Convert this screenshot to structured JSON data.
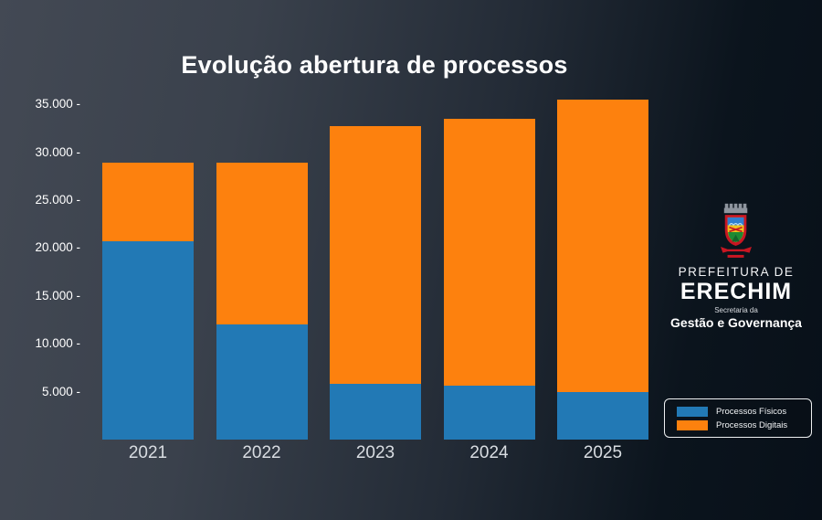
{
  "title": "Evolução abertura de processos",
  "colors": {
    "fisicos": "#2279b5",
    "digitais": "#fd810e",
    "background_left": "#434954",
    "background_right": "#081019",
    "ytick_text": "#ffffff",
    "xtick_text": "#d9dde2",
    "legend_border": "#eef0f2"
  },
  "chart_data": {
    "type": "bar",
    "stacked": true,
    "title": "Evolução abertura de processos",
    "xlabel": "",
    "ylabel": "",
    "categories": [
      "2021",
      "2022",
      "2023",
      "2024",
      "2025"
    ],
    "series": [
      {
        "name": "Processos Físicos",
        "color": "#2279b5",
        "values": [
          20700,
          12000,
          5800,
          5600,
          5000
        ]
      },
      {
        "name": "Processos Digitais",
        "color": "#fd810e",
        "values": [
          8200,
          16900,
          26900,
          27900,
          30500
        ]
      }
    ],
    "totals": [
      28900,
      28900,
      32700,
      33500,
      35500
    ],
    "ylim": [
      0,
      37000
    ],
    "yticks": [
      5000,
      10000,
      15000,
      20000,
      25000,
      30000,
      35000
    ],
    "ytick_labels": [
      "5.000 -",
      "10.000 -",
      "15.000 -",
      "20.000 -",
      "25.000 -",
      "30.000 -",
      "35.000 -"
    ],
    "grid": false,
    "legend_position": "bottom-right"
  },
  "legend": {
    "items": [
      {
        "label": "Processos Físicos",
        "color": "#2279b5"
      },
      {
        "label": "Processos Digitais",
        "color": "#fd810e"
      }
    ]
  },
  "logo": {
    "crest_icon": "erechim-coat-of-arms",
    "org_line1": "PREFEITURA DE",
    "org_line2": "ERECHIM",
    "dept_line1": "Secretaria da",
    "dept_line2": "Gestão e Governança"
  }
}
